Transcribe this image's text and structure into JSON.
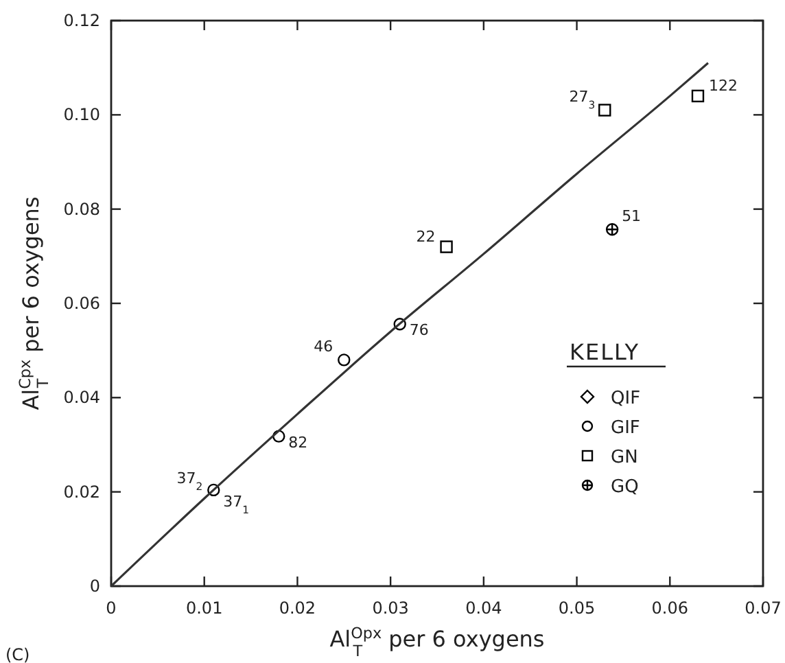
{
  "chart_data": {
    "type": "scatter",
    "xlabel": "Al$^{Opx}$$_{T}$ per 6 oxygens",
    "ylabel": "Al$^{Cpx}$$_{T}$ per 6 oxygens",
    "xlim": [
      0,
      0.07
    ],
    "ylim": [
      0,
      0.12
    ],
    "xticks": [
      0,
      0.01,
      0.02,
      0.03,
      0.04,
      0.05,
      0.06,
      0.07
    ],
    "yticks": [
      0,
      0.02,
      0.04,
      0.06,
      0.08,
      {
        "value": 0.1,
        "label": "0.10"
      },
      0.12
    ],
    "grid": false,
    "legend": "right",
    "legend_title": "KELLY",
    "series": [
      {
        "name": "QIF",
        "color": "#000000",
        "marker": "diamond"
      },
      {
        "name": "GIF",
        "color": "#000000",
        "marker": "circle",
        "x": [
          0.011,
          0.018,
          0.025,
          0.031
        ],
        "values": [
          0.0204,
          0.0318,
          0.048,
          0.0556
        ]
      },
      {
        "name": "GN",
        "color": "#000000",
        "marker": "square",
        "x": [
          0.036,
          0.053,
          0.063
        ],
        "values": [
          0.072,
          0.101,
          0.104
        ]
      },
      {
        "name": "GQ",
        "color": "#000000",
        "marker": "cross",
        "x": [
          0.0538
        ],
        "values": [
          0.0757
        ]
      },
      {
        "type": "line",
        "color": "#333333",
        "x": [
          0,
          0.01,
          0.02,
          0.03,
          0.04,
          0.05,
          0.06,
          0.0641
        ],
        "values": [
          0,
          0.0186,
          0.0365,
          0.054,
          0.0705,
          0.0875,
          0.104,
          0.111
        ]
      }
    ],
    "annotations": [
      {
        "text": "37$_{2}$",
        "x": 0.011,
        "y": 0.0204
      },
      {
        "text": "37$_{1}$",
        "x": 0.011,
        "y": 0.0204
      },
      {
        "text": "82",
        "x": 0.018,
        "y": 0.0318
      },
      {
        "text": "46",
        "x": 0.025,
        "y": 0.048
      },
      {
        "text": "76",
        "x": 0.031,
        "y": 0.0556
      },
      {
        "text": "22",
        "x": 0.036,
        "y": 0.072
      },
      {
        "text": "27$_{3}$",
        "x": 0.053,
        "y": 0.101
      },
      {
        "text": "122",
        "x": 0.063,
        "y": 0.104
      },
      {
        "text": "51",
        "x": 0.0538,
        "y": 0.0757
      },
      "(C)"
    ]
  }
}
